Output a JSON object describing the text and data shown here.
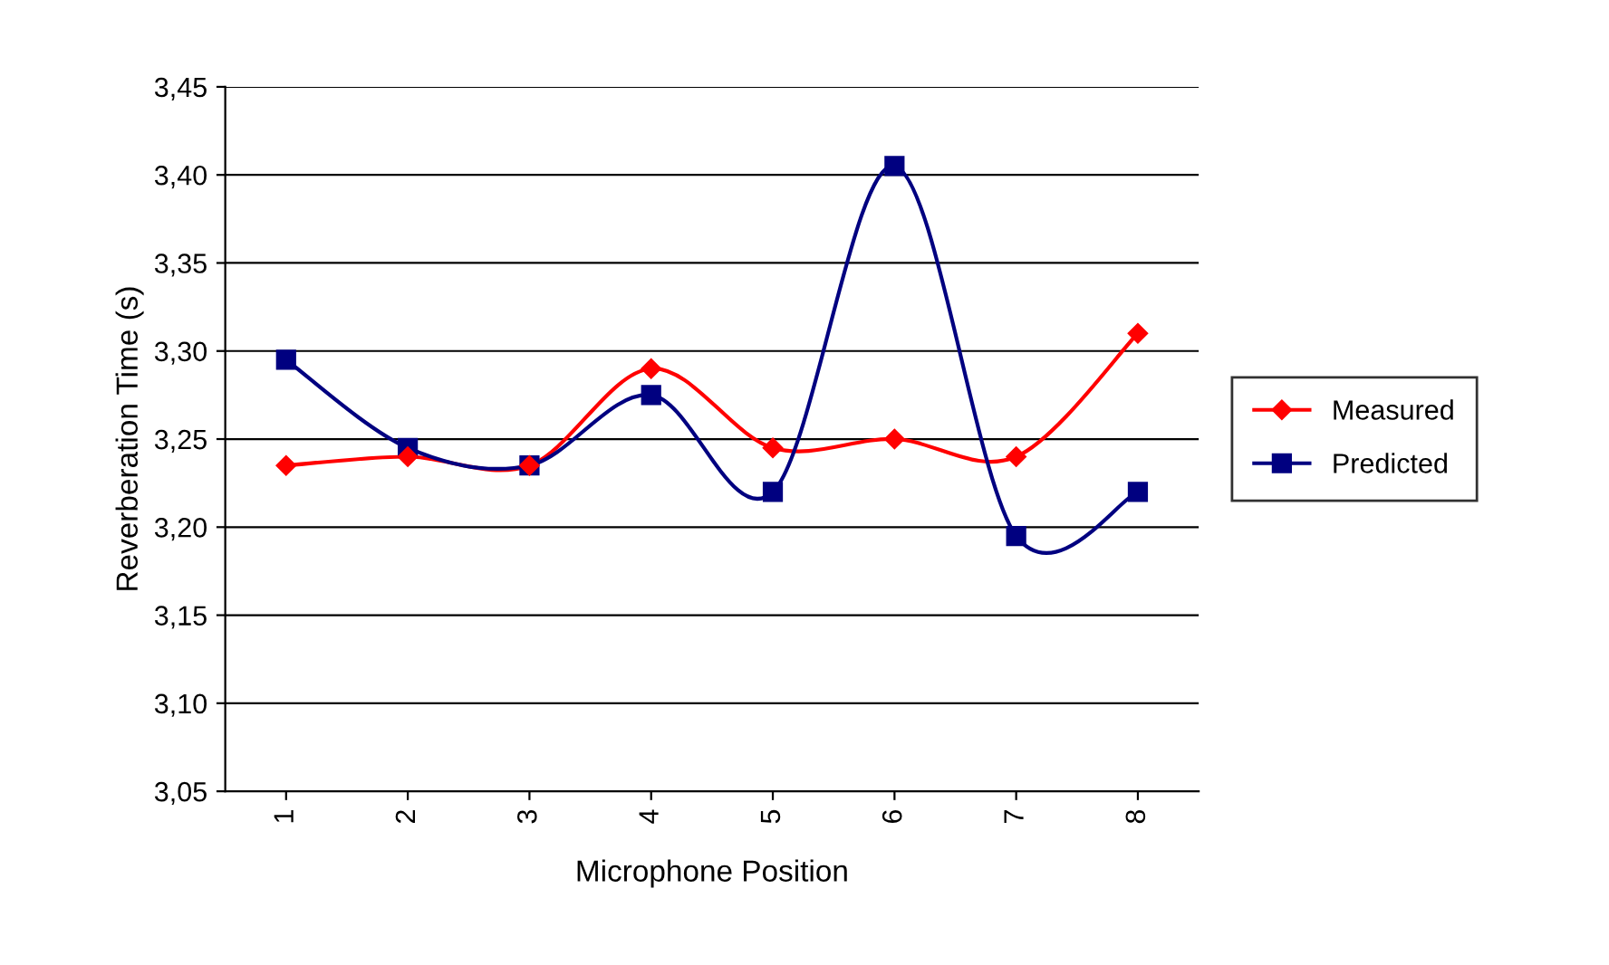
{
  "chart_data": {
    "type": "line",
    "xlabel": "Microphone Position",
    "ylabel": "Reverberation Time (s)",
    "categories": [
      "1",
      "2",
      "3",
      "4",
      "5",
      "6",
      "7",
      "8"
    ],
    "series": [
      {
        "name": "Measured",
        "color": "#ff0000",
        "marker": "diamond",
        "values": [
          3.235,
          3.24,
          3.235,
          3.29,
          3.245,
          3.25,
          3.24,
          3.31
        ]
      },
      {
        "name": "Predicted",
        "color": "#000080",
        "marker": "square",
        "values": [
          3.295,
          3.245,
          3.235,
          3.275,
          3.22,
          3.405,
          3.195,
          3.22
        ]
      }
    ],
    "ylim": [
      3.05,
      3.45
    ],
    "yticks": [
      {
        "value": 3.05,
        "label": "3,05"
      },
      {
        "value": 3.1,
        "label": "3,10"
      },
      {
        "value": 3.15,
        "label": "3,15"
      },
      {
        "value": 3.2,
        "label": "3,20"
      },
      {
        "value": 3.25,
        "label": "3,25"
      },
      {
        "value": 3.3,
        "label": "3,30"
      },
      {
        "value": 3.35,
        "label": "3,35"
      },
      {
        "value": 3.4,
        "label": "3,40"
      },
      {
        "value": 3.45,
        "label": "3,45"
      }
    ],
    "grid": "y",
    "legend": "right",
    "line_style": "solid"
  }
}
